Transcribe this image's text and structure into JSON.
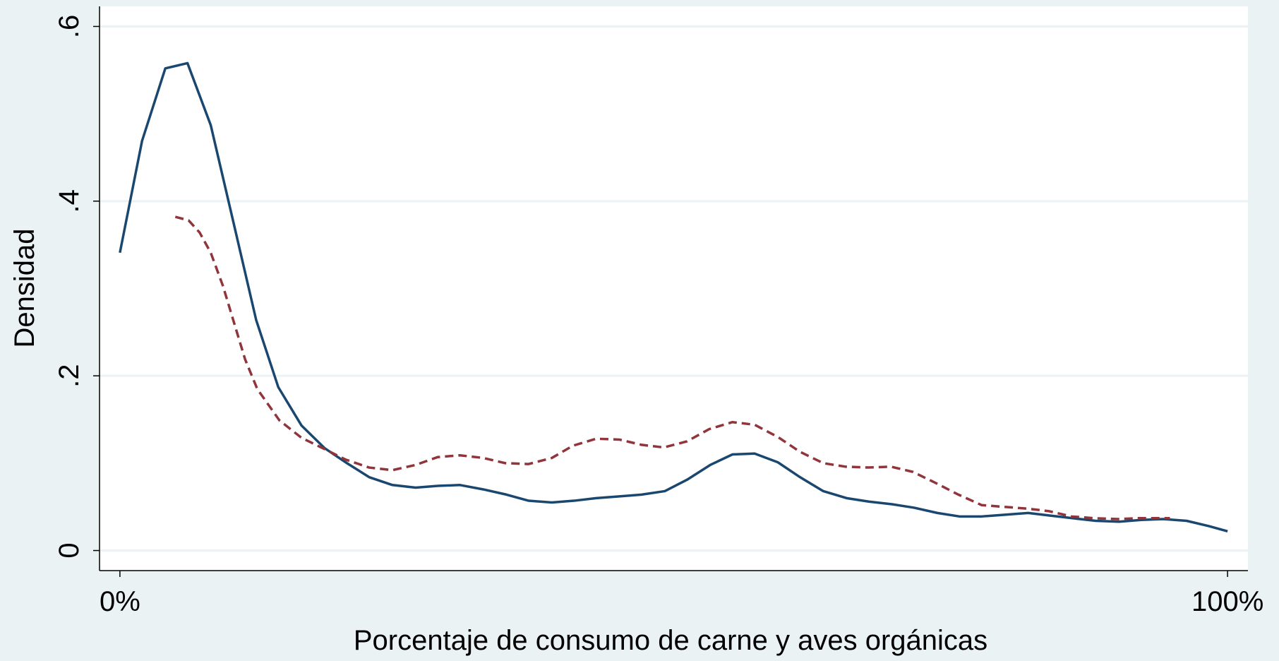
{
  "chart_data": {
    "type": "line",
    "x_label": "Porcentaje de consumo de carne y aves orgánicas",
    "y_label": "Densidad",
    "xlim": [
      -1.84,
      101.84
    ],
    "ylim": [
      -0.023,
      0.623
    ],
    "xticks": [
      {
        "value": 0,
        "label": "0%"
      },
      {
        "value": 100,
        "label": "100%"
      }
    ],
    "yticks": [
      0,
      {
        "value": 0.2,
        "label": ".2"
      },
      {
        "value": 0.4,
        "label": ".4"
      },
      {
        "value": 0.6,
        "label": ".6"
      }
    ],
    "grid": true,
    "series": [
      {
        "color": "#1a476f",
        "dash": false,
        "x": [
          0,
          2,
          4.1,
          6.1,
          8.2,
          10.3,
          12.3,
          14.3,
          16.4,
          18.5,
          20.5,
          22.5,
          24.6,
          26.7,
          28.7,
          30.7,
          32.8,
          34.9,
          36.9,
          39,
          41,
          43,
          45.1,
          47.1,
          49.2,
          51.2,
          53.3,
          55.3,
          57.3,
          59.4,
          61.4,
          63.5,
          65.6,
          67.6,
          69.7,
          71.7,
          73.8,
          75.8,
          77.8,
          79.9,
          82,
          84,
          86,
          88.1,
          90.2,
          92.2,
          94.2,
          96.3,
          98.3,
          100
        ],
        "values": [
          0.341,
          0.469,
          0.552,
          0.558,
          0.487,
          0.373,
          0.264,
          0.187,
          0.143,
          0.117,
          0.1,
          0.084,
          0.075,
          0.072,
          0.074,
          0.075,
          0.07,
          0.064,
          0.057,
          0.055,
          0.057,
          0.06,
          0.062,
          0.064,
          0.068,
          0.081,
          0.098,
          0.11,
          0.111,
          0.101,
          0.084,
          0.068,
          0.06,
          0.056,
          0.053,
          0.049,
          0.043,
          0.039,
          0.039,
          0.041,
          0.043,
          0.04,
          0.037,
          0.034,
          0.033,
          0.035,
          0.036,
          0.034,
          0.028,
          0.022
        ]
      },
      {
        "color": "#90353b",
        "dash": true,
        "x": [
          5.0,
          6.2,
          7.2,
          8.2,
          9.3,
          10.3,
          11.3,
          12.4,
          14.4,
          16.4,
          18.5,
          20.4,
          22.5,
          24.6,
          26.7,
          28.7,
          30.7,
          32.8,
          34.8,
          36.9,
          39,
          40.9,
          43,
          45.1,
          47.1,
          49.1,
          51.2,
          53.2,
          55.3,
          57.3,
          59.4,
          61.4,
          63.5,
          65.5,
          67.5,
          69.6,
          71.6,
          73.7,
          75.7,
          77.8,
          79.8,
          81.9,
          83.9,
          85.9,
          88,
          90.1,
          92,
          94.1,
          94.8
        ],
        "values": [
          0.382,
          0.378,
          0.364,
          0.341,
          0.303,
          0.261,
          0.219,
          0.185,
          0.149,
          0.129,
          0.116,
          0.104,
          0.095,
          0.092,
          0.098,
          0.107,
          0.109,
          0.106,
          0.1,
          0.099,
          0.106,
          0.12,
          0.128,
          0.127,
          0.121,
          0.118,
          0.125,
          0.139,
          0.147,
          0.144,
          0.13,
          0.113,
          0.1,
          0.096,
          0.095,
          0.096,
          0.09,
          0.077,
          0.064,
          0.052,
          0.05,
          0.048,
          0.045,
          0.039,
          0.037,
          0.036,
          0.037,
          0.037,
          0.037
        ]
      }
    ]
  }
}
